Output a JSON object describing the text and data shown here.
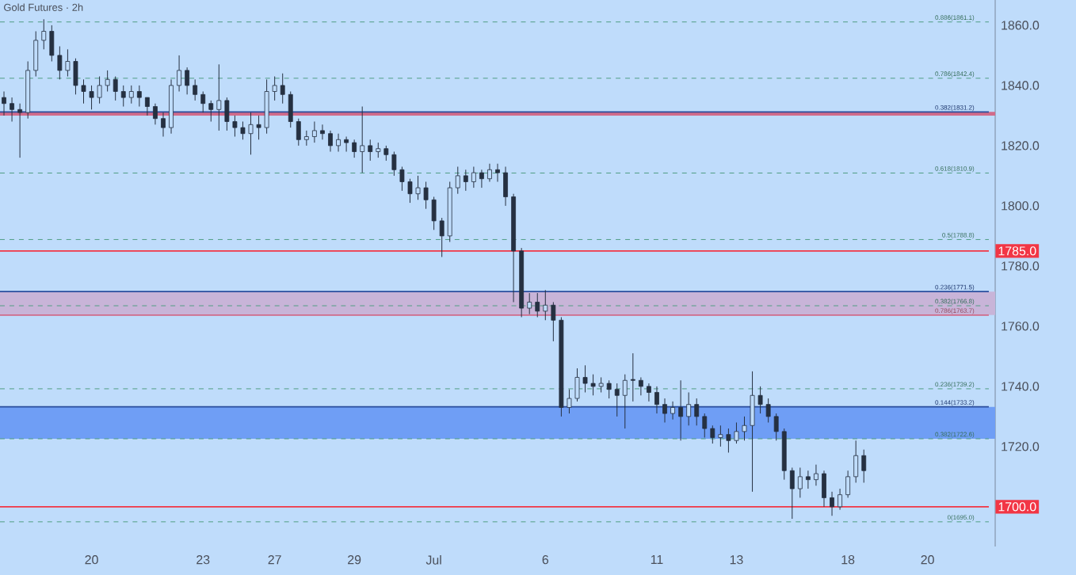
{
  "chart_data": {
    "type": "candlestick",
    "title": "Gold Futures · 2h",
    "color": "#253041",
    "categories": [
      null,
      null,
      null,
      null,
      null,
      null,
      null,
      null,
      null,
      null,
      null,
      "20",
      null,
      null,
      null,
      null,
      null,
      null,
      null,
      null,
      null,
      null,
      null,
      null,
      null,
      "23",
      null,
      null,
      null,
      null,
      null,
      null,
      null,
      null,
      "27",
      null,
      null,
      null,
      null,
      null,
      null,
      null,
      null,
      null,
      "29",
      null,
      null,
      null,
      null,
      null,
      null,
      null,
      null,
      null,
      "Jul",
      null,
      null,
      null,
      null,
      null,
      null,
      null,
      null,
      null,
      null,
      null,
      null,
      null,
      "6",
      null,
      null,
      null,
      null,
      null,
      null,
      null,
      null,
      null,
      null,
      null,
      null,
      null,
      "11",
      null,
      null,
      null,
      null,
      null,
      null,
      null,
      null,
      null,
      "13",
      null,
      null,
      null,
      null,
      null,
      null,
      null,
      null,
      null,
      null,
      null,
      null,
      null,
      "18",
      null,
      null,
      null,
      null,
      null,
      null,
      null,
      null,
      null,
      "20",
      null,
      null,
      null,
      null,
      null,
      null,
      null,
      null
    ],
    "ohlc": [
      [
        1836,
        1838,
        1830,
        1834
      ],
      [
        1834,
        1836,
        1828,
        1832
      ],
      [
        1832,
        1834,
        1816,
        1831
      ],
      [
        1831,
        1848,
        1829,
        1845
      ],
      [
        1845,
        1858,
        1843,
        1855
      ],
      [
        1855,
        1862,
        1852,
        1858
      ],
      [
        1858,
        1860,
        1848,
        1850
      ],
      [
        1850,
        1853,
        1842,
        1845
      ],
      [
        1845,
        1852,
        1843,
        1848
      ],
      [
        1848,
        1849,
        1837,
        1840
      ],
      [
        1840,
        1842,
        1834,
        1838
      ],
      [
        1838,
        1840,
        1832,
        1836
      ],
      [
        1836,
        1843,
        1834,
        1840
      ],
      [
        1840,
        1845,
        1838,
        1842
      ],
      [
        1842,
        1843,
        1835,
        1838
      ],
      [
        1838,
        1840,
        1833,
        1836
      ],
      [
        1836,
        1840,
        1834,
        1838
      ],
      [
        1838,
        1840,
        1833,
        1836
      ],
      [
        1836,
        1836,
        1830,
        1833
      ],
      [
        1833,
        1834,
        1827,
        1829
      ],
      [
        1829,
        1831,
        1823,
        1826
      ],
      [
        1826,
        1842,
        1824,
        1840
      ],
      [
        1840,
        1850,
        1838,
        1845
      ],
      [
        1845,
        1846,
        1837,
        1840
      ],
      [
        1840,
        1842,
        1835,
        1837
      ],
      [
        1837,
        1838,
        1831,
        1834
      ],
      [
        1834,
        1835,
        1828,
        1832
      ],
      [
        1832,
        1847,
        1825,
        1835
      ],
      [
        1835,
        1836,
        1825,
        1828
      ],
      [
        1828,
        1830,
        1823,
        1826
      ],
      [
        1826,
        1828,
        1822,
        1824
      ],
      [
        1824,
        1831,
        1817,
        1827
      ],
      [
        1827,
        1830,
        1822,
        1826
      ],
      [
        1826,
        1842,
        1824,
        1838
      ],
      [
        1838,
        1843,
        1835,
        1840
      ],
      [
        1840,
        1844,
        1834,
        1837
      ],
      [
        1837,
        1838,
        1826,
        1828
      ],
      [
        1828,
        1829,
        1820,
        1822
      ],
      [
        1822,
        1825,
        1820,
        1823
      ],
      [
        1823,
        1828,
        1821,
        1825
      ],
      [
        1825,
        1827,
        1822,
        1824
      ],
      [
        1824,
        1825,
        1818,
        1820
      ],
      [
        1820,
        1824,
        1818,
        1822
      ],
      [
        1822,
        1823,
        1818,
        1821
      ],
      [
        1821,
        1822,
        1816,
        1818
      ],
      [
        1818,
        1833,
        1811,
        1820
      ],
      [
        1820,
        1822,
        1815,
        1818
      ],
      [
        1818,
        1821,
        1816,
        1819
      ],
      [
        1819,
        1820,
        1815,
        1817
      ],
      [
        1817,
        1818,
        1810,
        1812
      ],
      [
        1812,
        1813,
        1805,
        1808
      ],
      [
        1808,
        1809,
        1801,
        1804
      ],
      [
        1804,
        1810,
        1802,
        1806
      ],
      [
        1806,
        1808,
        1799,
        1802
      ],
      [
        1802,
        1803,
        1792,
        1795
      ],
      [
        1795,
        1796,
        1783,
        1790
      ],
      [
        1790,
        1808,
        1788,
        1806
      ],
      [
        1806,
        1813,
        1804,
        1810
      ],
      [
        1810,
        1812,
        1805,
        1808
      ],
      [
        1808,
        1813,
        1806,
        1811
      ],
      [
        1811,
        1812,
        1806,
        1809
      ],
      [
        1809,
        1814,
        1808,
        1812
      ],
      [
        1812,
        1814,
        1808,
        1811
      ],
      [
        1811,
        1813,
        1800,
        1803
      ],
      [
        1803,
        1804,
        1768,
        1785
      ],
      [
        1785,
        1786,
        1763,
        1766
      ],
      [
        1766,
        1771,
        1764,
        1768
      ],
      [
        1768,
        1771,
        1763,
        1765
      ],
      [
        1765,
        1772,
        1762,
        1767
      ],
      [
        1767,
        1768,
        1755,
        1762
      ],
      [
        1762,
        1763,
        1730,
        1733
      ],
      [
        1733,
        1739,
        1731,
        1736
      ],
      [
        1736,
        1746,
        1735,
        1743
      ],
      [
        1743,
        1747,
        1738,
        1741
      ],
      [
        1741,
        1744,
        1737,
        1740
      ],
      [
        1740,
        1743,
        1738,
        1741
      ],
      [
        1741,
        1742,
        1736,
        1739
      ],
      [
        1739,
        1741,
        1730,
        1737
      ],
      [
        1737,
        1744,
        1726,
        1742
      ],
      [
        1742,
        1751,
        1735,
        1742
      ],
      [
        1742,
        1743,
        1737,
        1740
      ],
      [
        1740,
        1741,
        1735,
        1738
      ],
      [
        1738,
        1740,
        1731,
        1734
      ],
      [
        1734,
        1736,
        1728,
        1731
      ],
      [
        1731,
        1735,
        1729,
        1733
      ],
      [
        1733,
        1742,
        1722,
        1730
      ],
      [
        1730,
        1738,
        1727,
        1734
      ],
      [
        1734,
        1736,
        1727,
        1730
      ],
      [
        1730,
        1731,
        1723,
        1726
      ],
      [
        1726,
        1727,
        1721,
        1723
      ],
      [
        1723,
        1727,
        1720,
        1724
      ],
      [
        1724,
        1726,
        1718,
        1722
      ],
      [
        1722,
        1728,
        1721,
        1725
      ],
      [
        1725,
        1730,
        1722,
        1727
      ],
      [
        1727,
        1745,
        1705,
        1737
      ],
      [
        1737,
        1740,
        1731,
        1734
      ],
      [
        1734,
        1736,
        1728,
        1730
      ],
      [
        1730,
        1731,
        1722,
        1725
      ],
      [
        1725,
        1726,
        1709,
        1712
      ],
      [
        1712,
        1713,
        1696,
        1706
      ],
      [
        1706,
        1713,
        1703,
        1710
      ],
      [
        1710,
        1712,
        1706,
        1709
      ],
      [
        1709,
        1714,
        1707,
        1711
      ],
      [
        1711,
        1712,
        1700,
        1703
      ],
      [
        1703,
        1705,
        1697,
        1700
      ],
      [
        1700,
        1706,
        1699,
        1704
      ],
      [
        1704,
        1712,
        1703,
        1710
      ],
      [
        1710,
        1722,
        1708,
        1717
      ],
      [
        1717,
        1719,
        1708,
        1712
      ],
      null,
      null,
      null,
      null,
      null,
      null,
      null,
      null,
      null,
      null,
      null,
      null,
      null,
      null,
      null,
      null
    ],
    "ylim": [
      1686.8,
      1868.4
    ],
    "yticks": [
      {
        "value": 1720,
        "label": "1720.0"
      },
      {
        "value": 1740,
        "label": "1740.0"
      },
      {
        "value": 1760,
        "label": "1760.0"
      },
      {
        "value": 1780,
        "label": "1780.0"
      },
      {
        "value": 1800,
        "label": "1800.0"
      },
      {
        "value": 1820,
        "label": "1820.0"
      },
      {
        "value": 1840,
        "label": "1840.0"
      },
      {
        "value": 1860,
        "label": "1860.0"
      }
    ],
    "bands": [
      {
        "axis": "y",
        "from": 1830,
        "to": 1831.2,
        "color": "#d16b8a"
      },
      {
        "axis": "y",
        "from": 1763.7,
        "to": 1771.5,
        "color": "#c8b4d8"
      },
      {
        "axis": "y",
        "from": 1722.6,
        "to": 1733.2,
        "color": "#6f9ef5"
      }
    ],
    "ref_lines": [
      {
        "axis": "y",
        "value": 1861.1,
        "label": "0.886(1861.1)",
        "color": "#4f9e84",
        "line_style": "dashed"
      },
      {
        "axis": "y",
        "value": 1842.4,
        "label": "0.786(1842.4)",
        "color": "#4f9e84",
        "line_style": "dashed"
      },
      {
        "axis": "y",
        "value": 1831.2,
        "label": "0.382(1831.2)",
        "color": "#2a4d9c",
        "line_style": "solid"
      },
      {
        "axis": "y",
        "value": 1810.9,
        "label": "0.618(1810.9)",
        "color": "#4f9e84",
        "line_style": "dashed"
      },
      {
        "axis": "y",
        "value": 1788.8,
        "label": "0.5(1788.8)",
        "color": "#4f9e84",
        "line_style": "dashed"
      },
      {
        "axis": "y",
        "value": 1785,
        "label": "1785.0",
        "color": "#f23645",
        "line_style": "solid"
      },
      {
        "axis": "y",
        "value": 1771.5,
        "label": "0.236(1771.5)",
        "color": "#2a4d9c",
        "line_style": "solid"
      },
      {
        "axis": "y",
        "value": 1766.8,
        "label": "0.382(1766.8)",
        "color": "#4f9e84",
        "line_style": "dashed"
      },
      {
        "axis": "y",
        "value": 1763.7,
        "label": "0.786(1763.7)",
        "color": "#d16b8a",
        "line_style": "solid"
      },
      {
        "axis": "y",
        "value": 1739.2,
        "label": "0.236(1739.2)",
        "color": "#4f9e84",
        "line_style": "dashed"
      },
      {
        "axis": "y",
        "value": 1733.2,
        "label": "0.144(1733.2)",
        "color": "#2a4d9c",
        "line_style": "solid"
      },
      {
        "axis": "y",
        "value": 1722.6,
        "label": "0.382(1722.6)",
        "color": "#4f9e84",
        "line_style": "dashed"
      },
      {
        "axis": "y",
        "value": 1700,
        "label": "1700.0",
        "color": "#f23645",
        "line_style": "solid"
      },
      {
        "axis": "y",
        "value": 1695,
        "label": "0(1695.0)",
        "color": "#4f9e84",
        "line_style": "dashed"
      }
    ]
  }
}
